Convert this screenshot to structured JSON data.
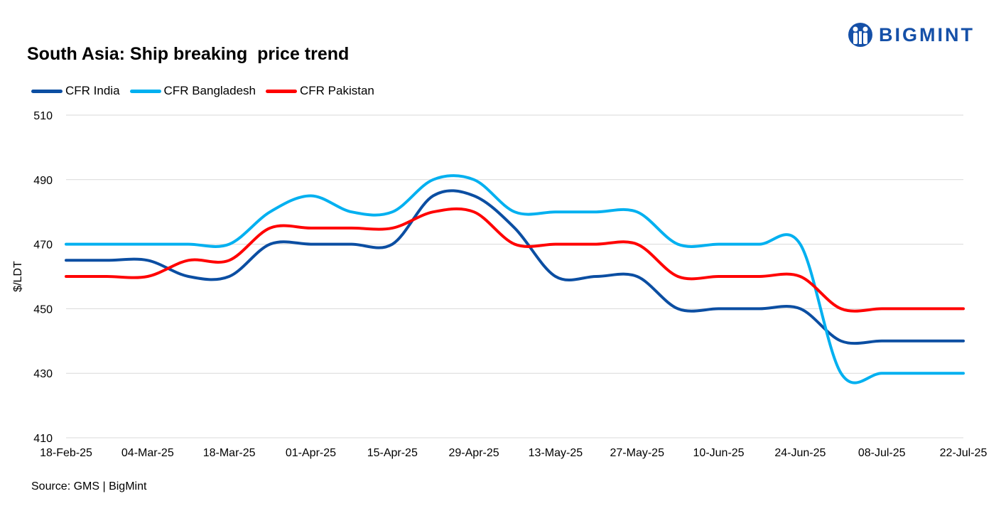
{
  "logo": {
    "text": "BIGMINT"
  },
  "source": "Source: GMS | BigMint",
  "chart_data": {
    "type": "line",
    "title": "South Asia: Ship breaking  price trend",
    "ylabel": "$/LDT",
    "xlabel": "",
    "ylim": [
      410,
      510
    ],
    "yticks": [
      410,
      430,
      450,
      470,
      490,
      510
    ],
    "grid": true,
    "legend_placement": "top-left",
    "xtick_labels": [
      "18-Feb-25",
      "04-Mar-25",
      "18-Mar-25",
      "01-Apr-25",
      "15-Apr-25",
      "29-Apr-25",
      "13-May-25",
      "27-May-25",
      "10-Jun-25",
      "24-Jun-25",
      "08-Jul-25",
      "22-Jul-25"
    ],
    "x": [
      "18-Feb-25",
      "25-Feb-25",
      "04-Mar-25",
      "11-Mar-25",
      "18-Mar-25",
      "25-Mar-25",
      "01-Apr-25",
      "08-Apr-25",
      "15-Apr-25",
      "22-Apr-25",
      "29-Apr-25",
      "06-May-25",
      "13-May-25",
      "20-May-25",
      "27-May-25",
      "03-Jun-25",
      "10-Jun-25",
      "17-Jun-25",
      "24-Jun-25",
      "01-Jul-25",
      "08-Jul-25",
      "15-Jul-25",
      "22-Jul-25"
    ],
    "series": [
      {
        "name": "CFR India",
        "color": "#0b4ea2",
        "values": [
          465,
          465,
          465,
          460,
          460,
          470,
          470,
          470,
          470,
          485,
          485,
          475,
          460,
          460,
          460,
          450,
          450,
          450,
          450,
          440,
          440,
          440,
          440
        ]
      },
      {
        "name": "CFR Bangladesh",
        "color": "#00b0f0",
        "values": [
          470,
          470,
          470,
          470,
          470,
          480,
          485,
          480,
          480,
          490,
          490,
          480,
          480,
          480,
          480,
          470,
          470,
          470,
          470,
          430,
          430,
          430,
          430
        ]
      },
      {
        "name": "CFR Pakistan",
        "color": "#ff0000",
        "values": [
          460,
          460,
          460,
          465,
          465,
          475,
          475,
          475,
          475,
          480,
          480,
          470,
          470,
          470,
          470,
          460,
          460,
          460,
          460,
          450,
          450,
          450,
          450
        ]
      }
    ]
  }
}
